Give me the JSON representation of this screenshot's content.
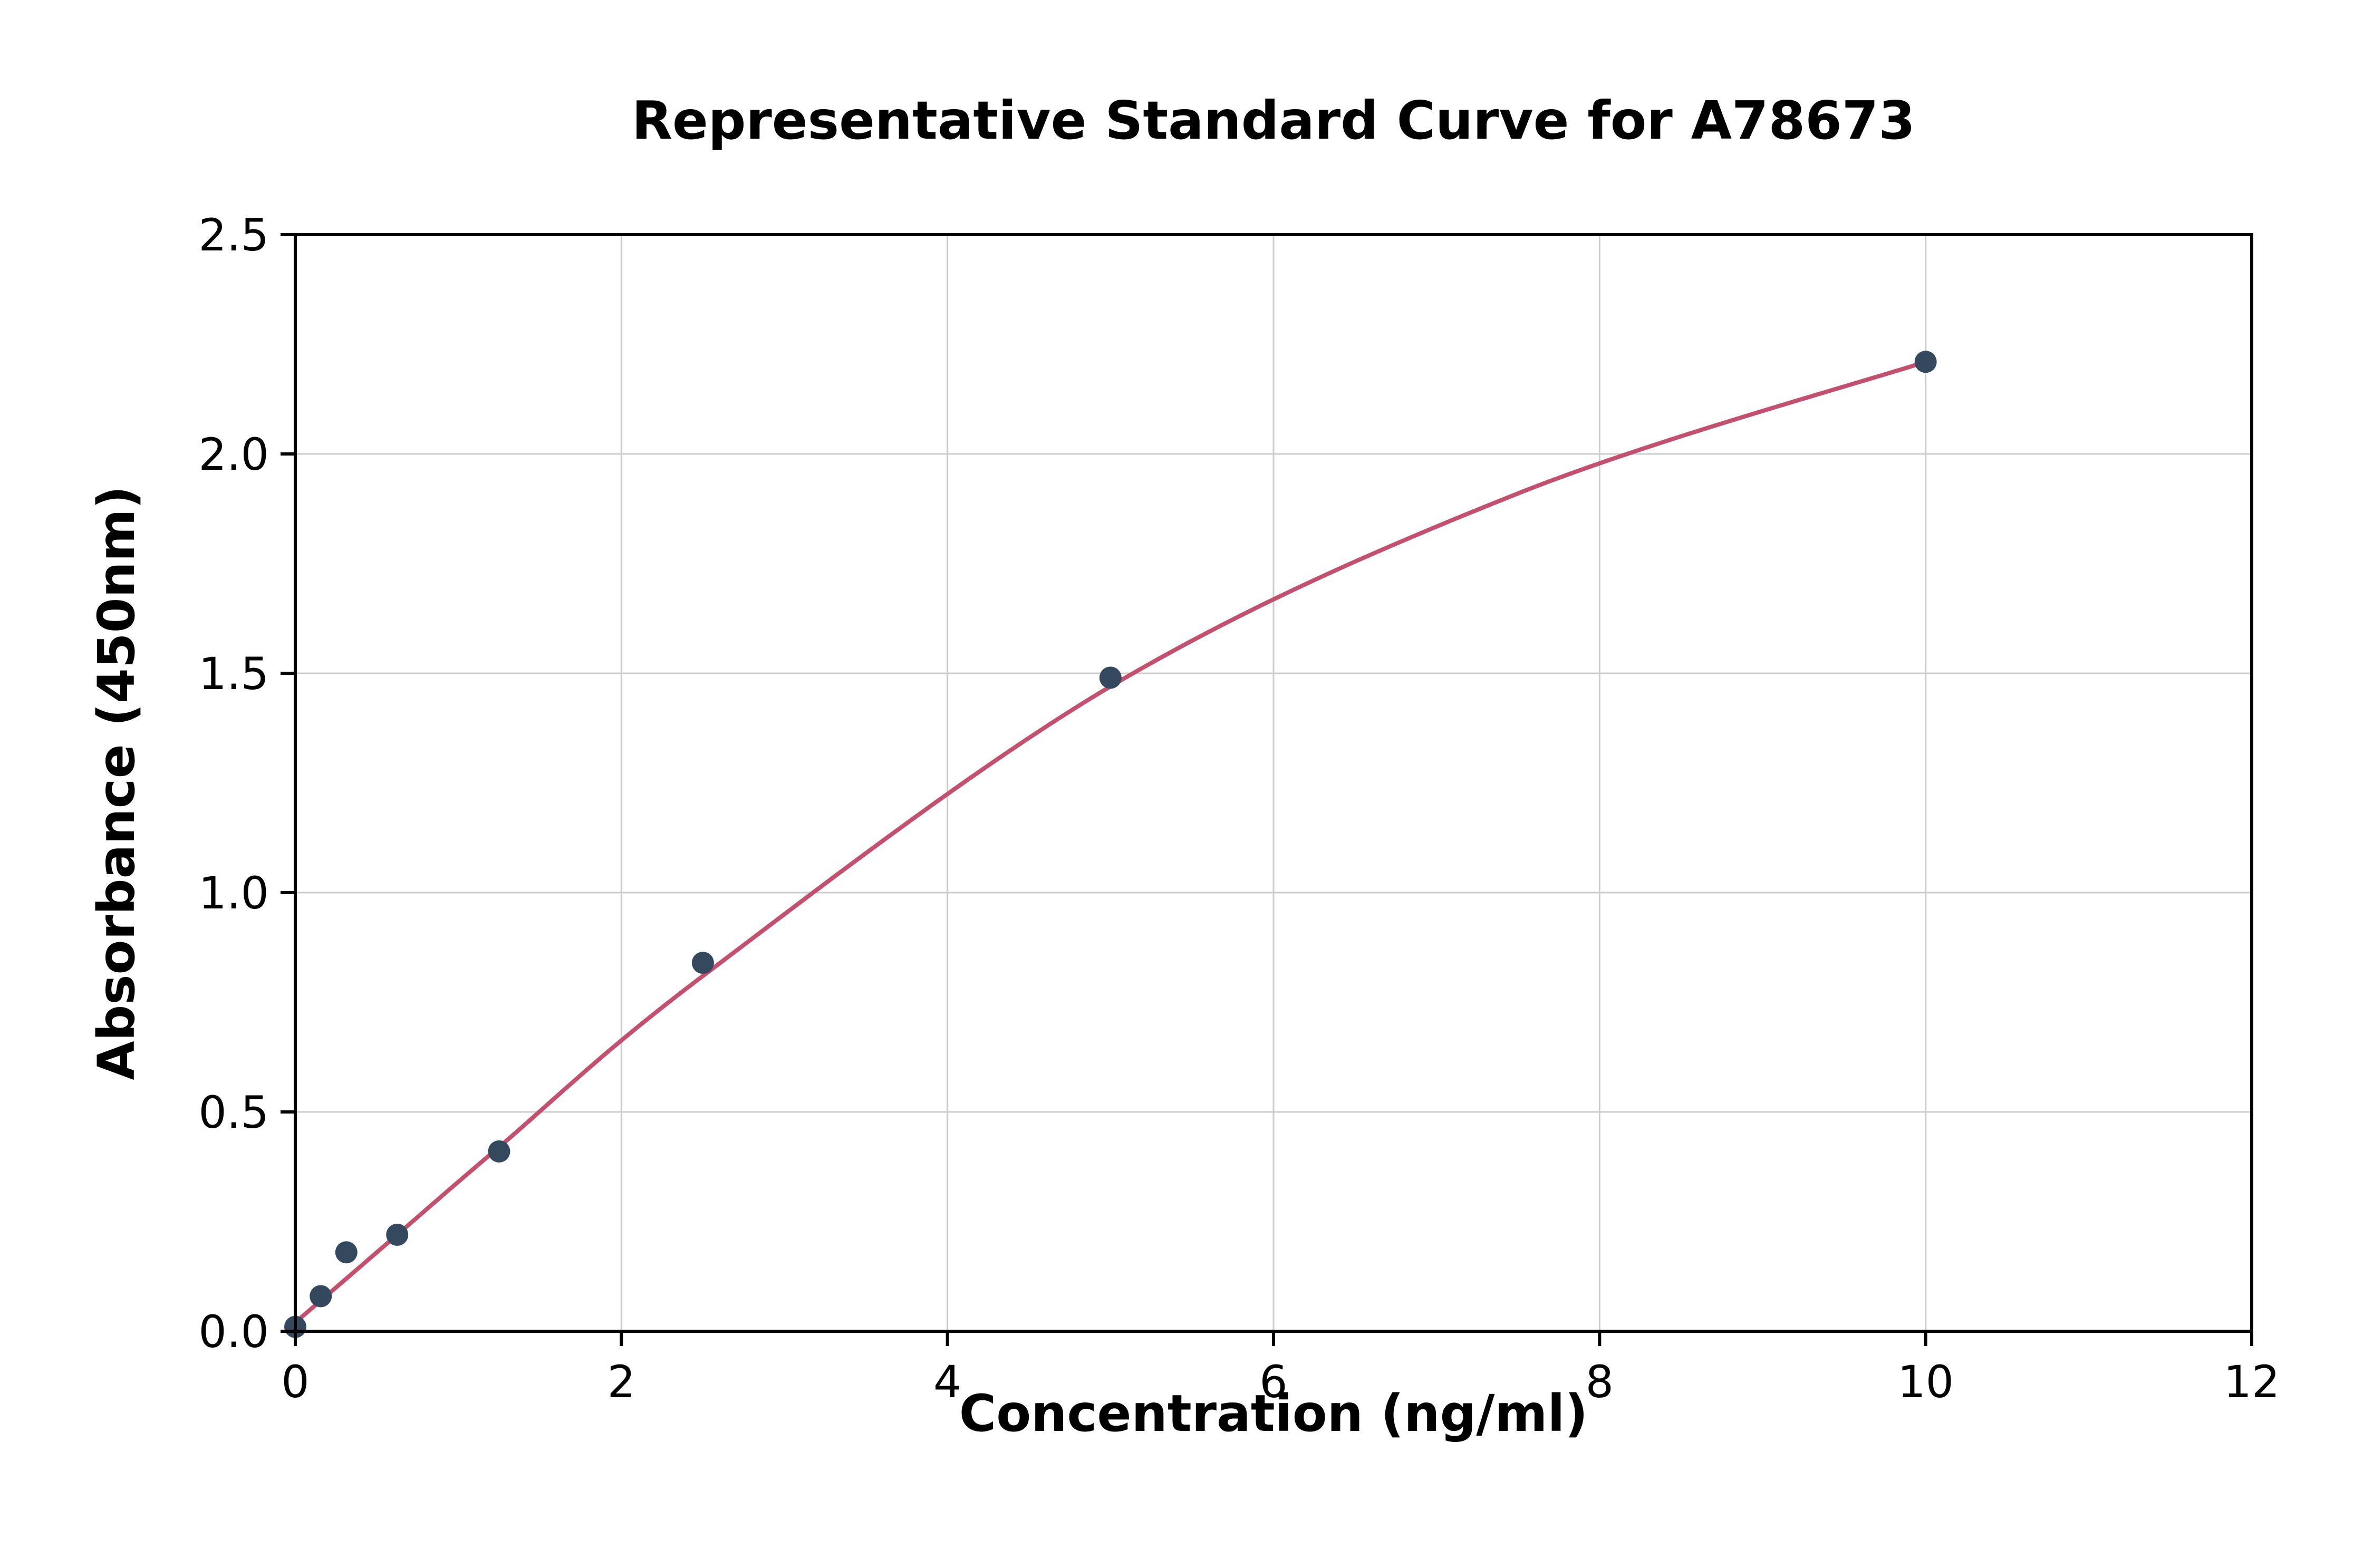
{
  "chart_data": {
    "type": "scatter",
    "title": "Representative Standard Curve for A78673",
    "xlabel": "Concentration (ng/ml)",
    "ylabel": "Absorbance (450nm)",
    "xlim": [
      0,
      12
    ],
    "ylim": [
      0,
      2.5
    ],
    "grid": true,
    "legend": "none",
    "x_ticks": [
      0,
      2,
      4,
      6,
      8,
      10,
      12
    ],
    "x_tick_labels": [
      "0",
      "2",
      "4",
      "6",
      "8",
      "10",
      "12"
    ],
    "y_ticks": [
      0.0,
      0.5,
      1.0,
      1.5,
      2.0,
      2.5
    ],
    "y_tick_labels": [
      "0.0",
      "0.5",
      "1.0",
      "1.5",
      "2.0",
      "2.5"
    ],
    "points": {
      "name": "standard-points",
      "x": [
        0,
        0.156,
        0.313,
        0.625,
        1.25,
        2.5,
        5,
        10
      ],
      "y": [
        0.01,
        0.08,
        0.18,
        0.22,
        0.41,
        0.84,
        1.49,
        2.21
      ]
    },
    "fit_curve": {
      "name": "fitted-standard-curve",
      "x": [
        0,
        0.156,
        0.313,
        0.625,
        1.25,
        2.5,
        5,
        7.5,
        10
      ],
      "y": [
        0.02,
        0.07,
        0.12,
        0.22,
        0.42,
        0.81,
        1.47,
        1.91,
        2.21
      ]
    },
    "colors": {
      "point": "#34495e",
      "curve": "#c2506e",
      "grid": "#cccccc",
      "axis": "#000000",
      "background": "#ffffff"
    }
  }
}
